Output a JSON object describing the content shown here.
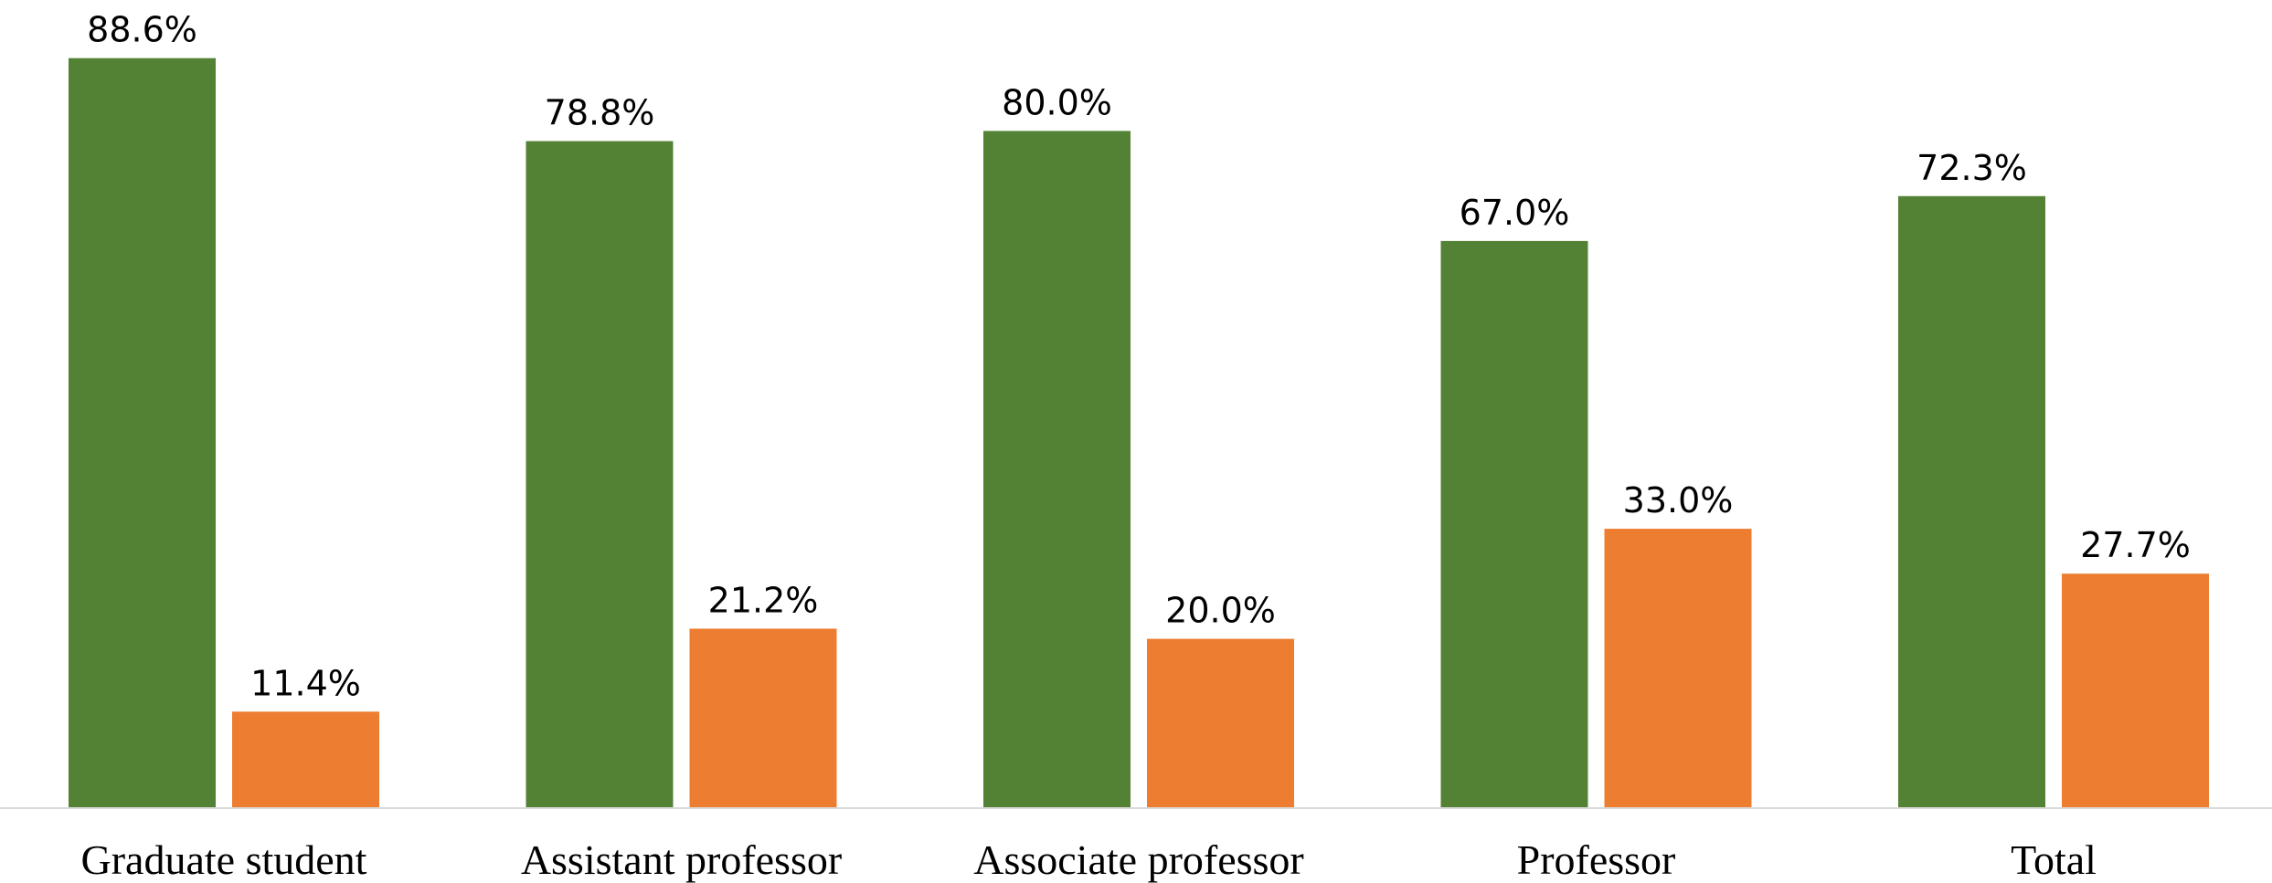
{
  "chart_data": {
    "type": "bar",
    "categories": [
      "Graduate student",
      "Assistant professor",
      "Associate professor",
      "Professor",
      "Total"
    ],
    "series": [
      {
        "values": [
          88.6,
          78.8,
          80.0,
          67.0,
          72.3
        ],
        "labels": [
          "88.6%",
          "78.8%",
          "80.0%",
          "67.0%",
          "72.3%"
        ],
        "color": "#548235"
      },
      {
        "values": [
          11.4,
          21.2,
          20.0,
          33.0,
          27.7
        ],
        "labels": [
          "11.4%",
          "21.2%",
          "20.0%",
          "33.0%",
          "27.7%"
        ],
        "color": "#ED7D31"
      }
    ],
    "ylim": [
      0,
      100
    ],
    "unit": "%",
    "grid": false,
    "legend": "none",
    "axis_color": "#D9D9D9"
  }
}
